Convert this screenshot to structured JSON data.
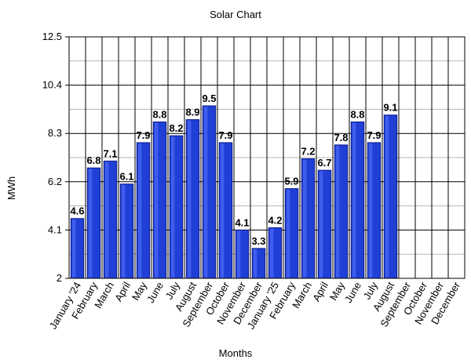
{
  "chart_data": {
    "type": "bar",
    "title": "Solar Chart",
    "xlabel": "Months",
    "ylabel": "MWh",
    "ylim": [
      2,
      12.5
    ],
    "yticks": [
      2,
      4.1,
      6.2,
      8.3,
      10.4,
      12.5
    ],
    "ytick_labels": [
      "2",
      "4.1",
      "6.2",
      "8.3",
      "10.4",
      "12.5"
    ],
    "grid": true,
    "legend": "none",
    "bar_color": "#1f3fd6",
    "bar_edge_color": "#0a1a8a",
    "categories": [
      "January '24",
      "February",
      "March",
      "April",
      "May",
      "June",
      "July",
      "August",
      "September",
      "October",
      "November",
      "December",
      "January '25",
      "February",
      "March",
      "April",
      "May",
      "June",
      "July",
      "August",
      "September",
      "October",
      "November",
      "December"
    ],
    "values": [
      4.6,
      6.8,
      7.1,
      6.1,
      7.9,
      8.8,
      8.2,
      8.9,
      9.5,
      7.9,
      4.1,
      3.3,
      4.2,
      5.9,
      7.2,
      6.7,
      7.8,
      8.8,
      7.9,
      9.1,
      null,
      null,
      null,
      null
    ],
    "value_labels": [
      "4.6",
      "6.8",
      "7.1",
      "6.1",
      "7.9",
      "8.8",
      "8.2",
      "8.9",
      "9.5",
      "7.9",
      "4.1",
      "3.3",
      "4.2",
      "5.9",
      "7.2",
      "6.7",
      "7.8",
      "8.8",
      "7.9",
      "9.1",
      "",
      "",
      "",
      ""
    ]
  }
}
